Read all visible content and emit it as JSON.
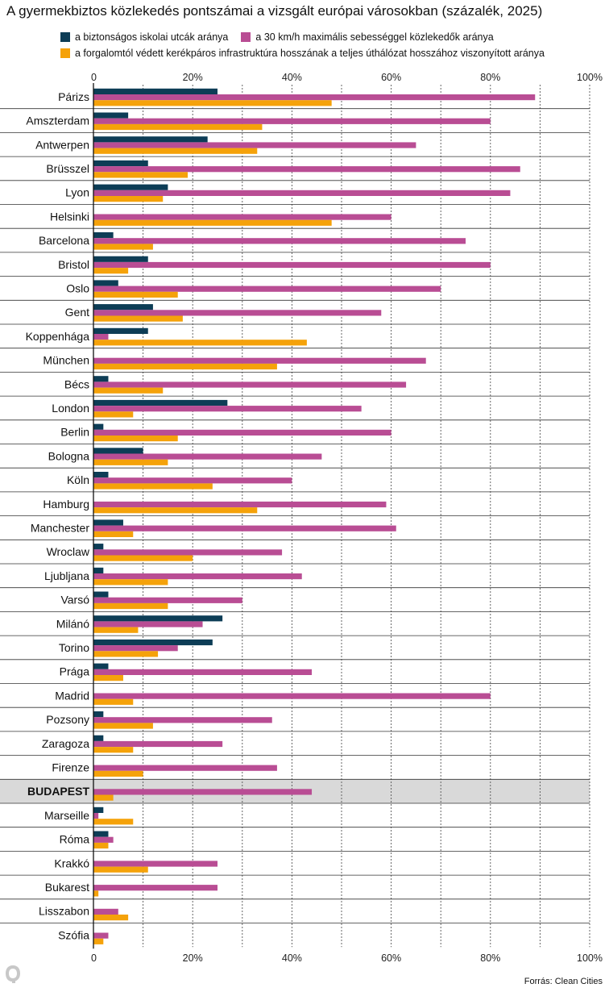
{
  "title": "A gyermekbiztos közlekedés pontszámai a vizsgált európai városokban (százalék, 2025)",
  "legend": [
    {
      "label": "a biztonságos iskolai utcák aránya",
      "color": "#0d3d56"
    },
    {
      "label": "a 30 km/h maximális sebességgel közlekedők aránya",
      "color": "#b94d94"
    },
    {
      "label": "a forgalomtól védett kerékpáros infrastruktúra hosszának a teljes úthálózat hosszához viszonyított aránya",
      "color": "#f5a20a"
    }
  ],
  "source": "Forrás: Clean Cities",
  "logo": "Q",
  "chart_data": {
    "type": "bar",
    "orientation": "horizontal",
    "title": "A gyermekbiztos közlekedés pontszámai a vizsgált európai városokban (százalék, 2025)",
    "xlim": [
      0,
      100
    ],
    "ticks": [
      "0",
      "20%",
      "40%",
      "60%",
      "80%",
      "100%"
    ],
    "grid": true,
    "highlight": "BUDAPEST",
    "categories": [
      "Párizs",
      "Amszterdam",
      "Antwerpen",
      "Brüsszel",
      "Lyon",
      "Helsinki",
      "Barcelona",
      "Bristol",
      "Oslo",
      "Gent",
      "Koppenhága",
      "München",
      "Bécs",
      "London",
      "Berlin",
      "Bologna",
      "Köln",
      "Hamburg",
      "Manchester",
      "Wroclaw",
      "Ljubljana",
      "Varsó",
      "Milánó",
      "Torino",
      "Prága",
      "Madrid",
      "Pozsony",
      "Zaragoza",
      "Firenze",
      "BUDAPEST",
      "Marseille",
      "Róma",
      "Krakkó",
      "Bukarest",
      "Lisszabon",
      "Szófia"
    ],
    "series": [
      {
        "name": "a biztonságos iskolai utcák aránya",
        "color": "#0d3d56",
        "values": [
          25,
          7,
          23,
          11,
          15,
          0,
          4,
          11,
          5,
          12,
          11,
          0,
          3,
          27,
          2,
          10,
          3,
          0,
          6,
          2,
          2,
          3,
          26,
          24,
          3,
          0,
          2,
          2,
          0,
          0,
          2,
          3,
          0,
          0,
          0,
          0
        ]
      },
      {
        "name": "a 30 km/h maximális sebességgel közlekedők aránya",
        "color": "#b94d94",
        "values": [
          89,
          80,
          65,
          86,
          84,
          60,
          75,
          80,
          70,
          58,
          3,
          67,
          63,
          54,
          60,
          46,
          40,
          59,
          61,
          38,
          42,
          30,
          22,
          17,
          44,
          80,
          36,
          26,
          37,
          44,
          1,
          4,
          25,
          25,
          5,
          3
        ]
      },
      {
        "name": "a forgalomtól védett kerékpáros infrastruktúra hosszának a teljes úthálózat hosszához viszonyított aránya",
        "color": "#f5a20a",
        "values": [
          48,
          34,
          33,
          19,
          14,
          48,
          12,
          7,
          17,
          18,
          43,
          37,
          14,
          8,
          17,
          15,
          24,
          33,
          8,
          20,
          15,
          15,
          9,
          13,
          6,
          8,
          12,
          8,
          10,
          4,
          8,
          3,
          11,
          1,
          7,
          2
        ]
      }
    ]
  }
}
